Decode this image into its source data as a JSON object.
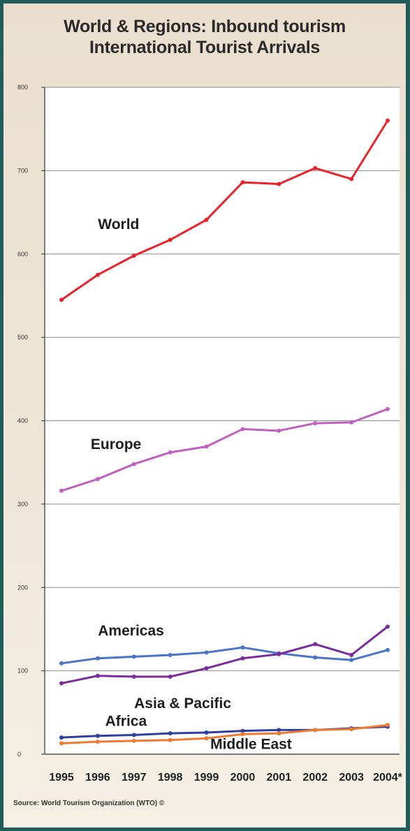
{
  "title_line1": "World & Regions: Inbound tourism",
  "title_line2": "International Tourist Arrivals",
  "source": "Source: World Tourism Organization (WTO) ©",
  "chart_data": {
    "type": "line",
    "title": "World & Regions: Inbound tourism International Tourist Arrivals",
    "xlabel": "",
    "ylabel": "",
    "x": [
      "1995",
      "1996",
      "1997",
      "1998",
      "1999",
      "2000",
      "2001",
      "2002",
      "2003",
      "2004*"
    ],
    "ylim": [
      0,
      800
    ],
    "yticks": [
      "0",
      "100",
      "200",
      "300",
      "400",
      "500",
      "600",
      "700",
      "800"
    ],
    "grid": true,
    "series": [
      {
        "name": "World",
        "color": "#e8232b",
        "values": [
          545,
          575,
          598,
          617,
          641,
          686,
          684,
          703,
          690,
          760
        ]
      },
      {
        "name": "Europe",
        "color": "#c060c0",
        "values": [
          316,
          330,
          348,
          362,
          369,
          390,
          388,
          397,
          398,
          414
        ]
      },
      {
        "name": "Americas",
        "color": "#4a74c8",
        "values": [
          109,
          115,
          117,
          119,
          122,
          128,
          121,
          116,
          113,
          125
        ]
      },
      {
        "name": "Asia & Pacific",
        "color": "#7a2c9a",
        "values": [
          85,
          94,
          93,
          93,
          103,
          115,
          120,
          132,
          119,
          153
        ]
      },
      {
        "name": "Africa",
        "color": "#2e3fa0",
        "values": [
          20,
          22,
          23,
          25,
          26,
          28,
          29,
          29,
          31,
          33
        ]
      },
      {
        "name": "Middle East",
        "color": "#f07a30",
        "values": [
          13,
          15,
          16,
          17,
          19,
          24,
          25,
          29,
          30,
          35
        ]
      }
    ]
  }
}
